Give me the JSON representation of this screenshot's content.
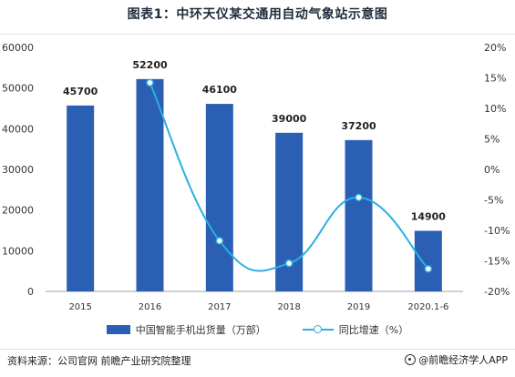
{
  "title": "图表1：中环天仪某交通用自动气象站示意图",
  "source": "资料来源：公司官网 前瞻产业研究院整理",
  "brand": "@前瞻经济学人APP",
  "colors": {
    "bar": "#2b5fb4",
    "line": "#29b0e3",
    "axis": "#9aa3ad",
    "text": "#333333"
  },
  "chart_data": {
    "type": "bar",
    "categories": [
      "2015",
      "2016",
      "2017",
      "2018",
      "2019",
      "2020.1-6"
    ],
    "series": [
      {
        "name": "中国智能手机出货量（万部）",
        "type": "bar",
        "axis": "left",
        "values": [
          45700,
          52200,
          46100,
          39000,
          37200,
          14900
        ]
      },
      {
        "name": "同比增速（%）",
        "type": "line",
        "axis": "right",
        "values": [
          null,
          14.2,
          -11.7,
          -15.4,
          -4.6,
          -16.3
        ]
      }
    ],
    "data_labels": [
      "45700",
      "52200",
      "46100",
      "39000",
      "37200",
      "14900"
    ],
    "y_left": {
      "ylim": [
        0,
        60000
      ],
      "ticks": [
        "0",
        "10000",
        "20000",
        "30000",
        "40000",
        "50000",
        "60000"
      ]
    },
    "y_right": {
      "ylim": [
        -20,
        20
      ],
      "ticks": [
        "-20%",
        "-15%",
        "-10%",
        "-5%",
        "0%",
        "5%",
        "10%",
        "15%",
        "20%"
      ]
    },
    "grid": false,
    "legend_position": "bottom"
  }
}
